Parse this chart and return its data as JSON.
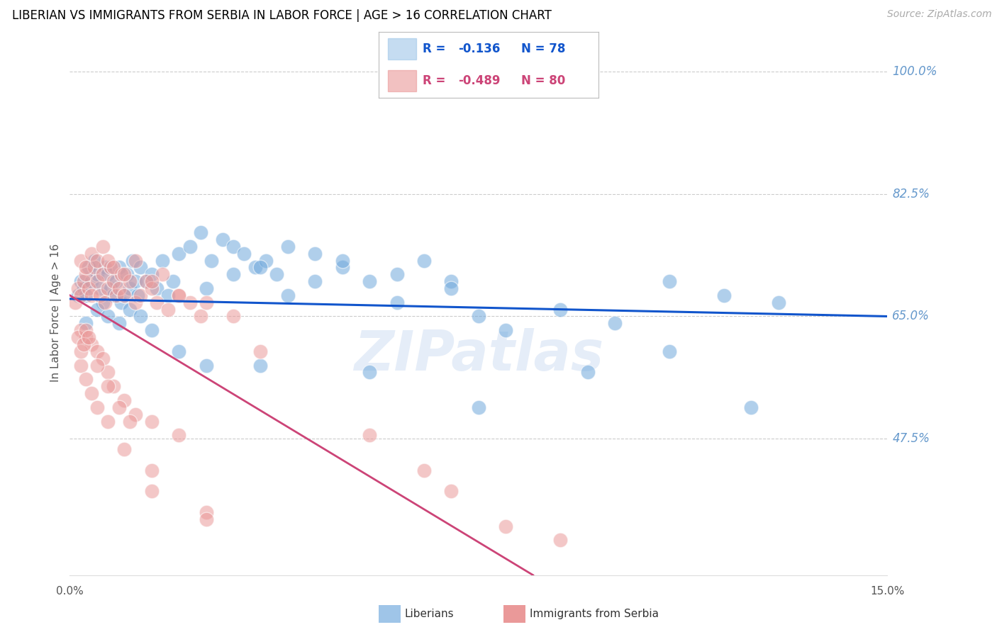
{
  "title": "LIBERIAN VS IMMIGRANTS FROM SERBIA IN LABOR FORCE | AGE > 16 CORRELATION CHART",
  "source": "Source: ZipAtlas.com",
  "ylabel": "In Labor Force | Age > 16",
  "xlim": [
    0.0,
    15.0
  ],
  "ylim": [
    28.0,
    103.0
  ],
  "yticks": [
    47.5,
    65.0,
    82.5,
    100.0
  ],
  "ytick_labels": [
    "47.5%",
    "65.0%",
    "82.5%",
    "100.0%"
  ],
  "blue_color": "#6fa8dc",
  "pink_color": "#ea9999",
  "blue_line_color": "#1155cc",
  "pink_line_color": "#cc4477",
  "right_tick_color": "#6699cc",
  "grid_color": "#cccccc",
  "title_color": "#000000",
  "source_color": "#aaaaaa",
  "legend_box_blue": "#9fc5e8",
  "legend_box_pink": "#ea9999",
  "blue_scatter_x": [
    0.15,
    0.2,
    0.25,
    0.3,
    0.35,
    0.4,
    0.45,
    0.5,
    0.55,
    0.6,
    0.65,
    0.7,
    0.75,
    0.8,
    0.85,
    0.9,
    0.95,
    1.0,
    1.05,
    1.1,
    1.15,
    1.2,
    1.25,
    1.3,
    1.4,
    1.5,
    1.6,
    1.7,
    1.8,
    1.9,
    2.0,
    2.2,
    2.4,
    2.6,
    2.8,
    3.0,
    3.2,
    3.4,
    3.6,
    3.8,
    4.0,
    4.5,
    5.0,
    5.5,
    6.0,
    6.5,
    7.0,
    8.0,
    9.0,
    10.0,
    11.0,
    12.0,
    13.0,
    2.5,
    3.0,
    3.5,
    4.0,
    4.5,
    5.0,
    6.0,
    7.0,
    7.5,
    11.0,
    12.5,
    0.3,
    0.5,
    0.7,
    0.9,
    1.1,
    1.3,
    1.5,
    2.0,
    2.5,
    3.5,
    5.5,
    7.5,
    9.5
  ],
  "blue_scatter_y": [
    68,
    70,
    69,
    68,
    72,
    70,
    73,
    71,
    69,
    67,
    72,
    71,
    69,
    68,
    70,
    72,
    67,
    68,
    71,
    69,
    73,
    70,
    68,
    72,
    70,
    71,
    69,
    73,
    68,
    70,
    74,
    75,
    77,
    73,
    76,
    75,
    74,
    72,
    73,
    71,
    75,
    74,
    72,
    70,
    71,
    73,
    70,
    63,
    66,
    64,
    70,
    68,
    67,
    69,
    71,
    72,
    68,
    70,
    73,
    67,
    69,
    65,
    60,
    52,
    64,
    66,
    65,
    64,
    66,
    65,
    63,
    60,
    58,
    58,
    57,
    52,
    57
  ],
  "pink_scatter_x": [
    0.1,
    0.15,
    0.2,
    0.25,
    0.3,
    0.35,
    0.4,
    0.45,
    0.5,
    0.55,
    0.6,
    0.65,
    0.7,
    0.75,
    0.8,
    0.85,
    0.9,
    0.95,
    1.0,
    1.1,
    1.2,
    1.3,
    1.4,
    1.5,
    1.6,
    1.7,
    1.8,
    2.0,
    2.2,
    2.4,
    0.2,
    0.3,
    0.4,
    0.5,
    0.6,
    0.7,
    0.8,
    1.0,
    1.2,
    1.5,
    2.0,
    2.5,
    3.0,
    0.2,
    0.3,
    0.4,
    0.5,
    0.6,
    0.7,
    0.8,
    1.0,
    1.2,
    1.5,
    2.0,
    0.2,
    0.3,
    0.4,
    0.5,
    0.7,
    1.0,
    1.5,
    2.5,
    3.5,
    5.5,
    6.5,
    7.0,
    8.0,
    9.0,
    0.15,
    0.2,
    0.25,
    0.3,
    0.35,
    0.5,
    0.7,
    0.9,
    1.1,
    1.5,
    2.5
  ],
  "pink_scatter_y": [
    67,
    69,
    68,
    70,
    71,
    69,
    68,
    72,
    70,
    68,
    71,
    67,
    69,
    72,
    70,
    68,
    69,
    71,
    68,
    70,
    67,
    68,
    70,
    69,
    67,
    71,
    66,
    68,
    67,
    65,
    73,
    72,
    74,
    73,
    75,
    73,
    72,
    71,
    73,
    70,
    68,
    67,
    65,
    63,
    62,
    61,
    60,
    59,
    57,
    55,
    53,
    51,
    50,
    48,
    58,
    56,
    54,
    52,
    50,
    46,
    40,
    37,
    60,
    48,
    43,
    40,
    35,
    33,
    62,
    60,
    61,
    63,
    62,
    58,
    55,
    52,
    50,
    43,
    36
  ],
  "blue_line_x0": 0.0,
  "blue_line_y0": 67.5,
  "blue_line_x1": 15.0,
  "blue_line_y1": 65.0,
  "pink_line_x0": 0.0,
  "pink_line_y0": 68.0,
  "pink_line_x1": 8.5,
  "pink_line_y1": 28.0,
  "label_liberians": "Liberians",
  "label_serbia": "Immigrants from Serbia",
  "watermark": "ZIPatlas",
  "background_color": "#ffffff"
}
